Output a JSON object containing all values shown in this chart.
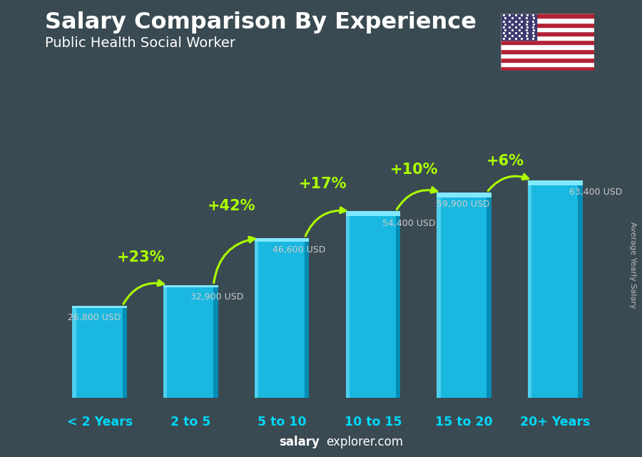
{
  "title": "Salary Comparison By Experience",
  "subtitle": "Public Health Social Worker",
  "categories": [
    "< 2 Years",
    "2 to 5",
    "5 to 10",
    "10 to 15",
    "15 to 20",
    "20+ Years"
  ],
  "values": [
    26800,
    32900,
    46600,
    54400,
    59900,
    63400
  ],
  "value_labels": [
    "26,800 USD",
    "32,900 USD",
    "46,600 USD",
    "54,400 USD",
    "59,900 USD",
    "63,400 USD"
  ],
  "pct_changes": [
    "+23%",
    "+42%",
    "+17%",
    "+10%",
    "+6%"
  ],
  "bar_color_main": "#1ab8e0",
  "bar_color_light": "#55d4f0",
  "bar_color_dark": "#0088b0",
  "bar_color_top": "#80e8ff",
  "bg_color": "#3a4a52",
  "title_color": "#ffffff",
  "subtitle_color": "#ffffff",
  "value_label_color": "#cccccc",
  "pct_color": "#aaff00",
  "xcat_color": "#00d8f8",
  "ylabel_text": "Average Yearly Salary",
  "footer_salary": "salary",
  "footer_rest": "explorer.com",
  "ylim_max": 80000,
  "bar_width": 0.6
}
